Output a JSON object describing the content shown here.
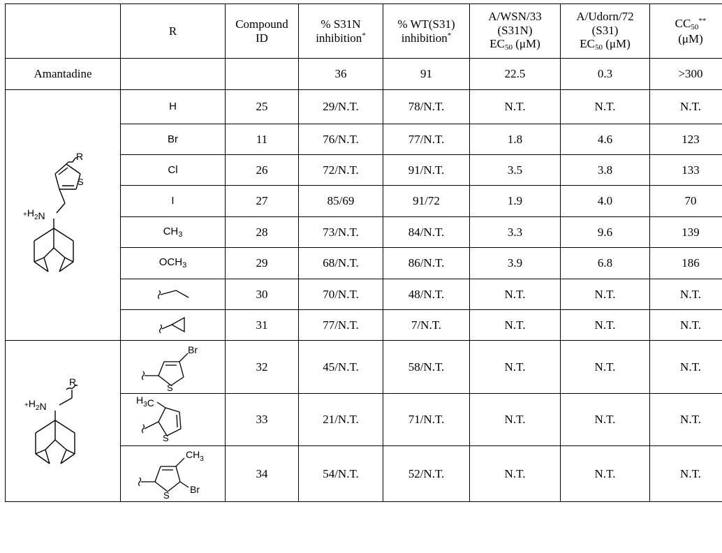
{
  "table": {
    "headers": {
      "scaffold": "",
      "r": "R",
      "compound_id": [
        "Compound",
        "ID"
      ],
      "s31n_inhibition": [
        "% S31N",
        "inhibition"
      ],
      "wt_inhibition": [
        "% WT(S31)",
        "inhibition"
      ],
      "wsn_ec50": [
        "A/WSN/33",
        "(S31N)",
        "EC",
        "50",
        " (μM)"
      ],
      "udorn_ec50": [
        "A/Udorn/72",
        "(S31)",
        "EC",
        "50",
        " (μM)"
      ],
      "cc50": [
        "CC",
        "50",
        "(μM)"
      ],
      "footnote_single": "*",
      "footnote_double": "**"
    },
    "reference_row": {
      "name": "Amantadine",
      "r": "",
      "compound_id": "",
      "s31n": "36",
      "wt": "91",
      "wsn_ec50": "22.5",
      "udorn_ec50": "0.3",
      "cc50": ">300"
    },
    "group1": {
      "scaffold_labels": {
        "r": "R",
        "s": "S",
        "h2n": "+H2N"
      },
      "rows": [
        {
          "r": "H",
          "compound_id": "25",
          "s31n": "29/N.T.",
          "wt": "78/N.T.",
          "wsn_ec50": "N.T.",
          "udorn_ec50": "N.T.",
          "cc50": "N.T."
        },
        {
          "r": "Br",
          "compound_id": "11",
          "s31n": "76/N.T.",
          "wt": "77/N.T.",
          "wsn_ec50": "1.8",
          "udorn_ec50": "4.6",
          "cc50": "123"
        },
        {
          "r": "Cl",
          "compound_id": "26",
          "s31n": "72/N.T.",
          "wt": "91/N.T.",
          "wsn_ec50": "3.5",
          "udorn_ec50": "3.8",
          "cc50": "133"
        },
        {
          "r": "I",
          "compound_id": "27",
          "s31n": "85/69",
          "wt": "91/72",
          "wsn_ec50": "1.9",
          "udorn_ec50": "4.0",
          "cc50": "70"
        },
        {
          "r": "CH3",
          "compound_id": "28",
          "s31n": "73/N.T.",
          "wt": "84/N.T.",
          "wsn_ec50": "3.3",
          "udorn_ec50": "9.6",
          "cc50": "139"
        },
        {
          "r": "OCH3",
          "compound_id": "29",
          "s31n": "68/N.T.",
          "wt": "86/N.T.",
          "wsn_ec50": "3.9",
          "udorn_ec50": "6.8",
          "cc50": "186"
        },
        {
          "r": "",
          "compound_id": "30",
          "s31n": "70/N.T.",
          "wt": "48/N.T.",
          "wsn_ec50": "N.T.",
          "udorn_ec50": "N.T.",
          "cc50": "N.T."
        },
        {
          "r": "",
          "compound_id": "31",
          "s31n": "77/N.T.",
          "wt": "7/N.T.",
          "wsn_ec50": "N.T.",
          "udorn_ec50": "N.T.",
          "cc50": "N.T."
        }
      ]
    },
    "group2": {
      "scaffold_labels": {
        "r": "R",
        "h2n": "+H2N"
      },
      "rows": [
        {
          "compound_id": "32",
          "s31n": "45/N.T.",
          "wt": "58/N.T.",
          "wsn_ec50": "N.T.",
          "udorn_ec50": "N.T.",
          "cc50": "N.T.",
          "labels": {
            "br": "Br",
            "s": "S"
          }
        },
        {
          "compound_id": "33",
          "s31n": "21/N.T.",
          "wt": "71/N.T.",
          "wsn_ec50": "N.T.",
          "udorn_ec50": "N.T.",
          "cc50": "N.T.",
          "labels": {
            "h3c": "H3C",
            "s": "S"
          }
        },
        {
          "compound_id": "34",
          "s31n": "54/N.T.",
          "wt": "52/N.T.",
          "wsn_ec50": "N.T.",
          "udorn_ec50": "N.T.",
          "cc50": "N.T.",
          "labels": {
            "ch3": "CH3",
            "br": "Br",
            "s": "S"
          }
        }
      ]
    }
  }
}
